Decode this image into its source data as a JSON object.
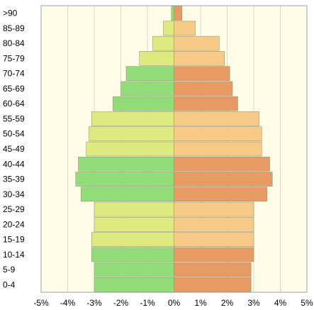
{
  "chart_data": {
    "type": "bar",
    "orientation": "horizontal",
    "layout": "population-pyramid",
    "title": "",
    "xlabel": "",
    "ylabel": "",
    "xlim": [
      -5,
      5
    ],
    "x_ticks": [
      -5,
      -4,
      -3,
      -2,
      -1,
      0,
      1,
      2,
      3,
      4,
      5
    ],
    "x_tick_labels": [
      "-5%",
      "-4%",
      "-3%",
      "-2%",
      "-1%",
      "0%",
      "1%",
      "2%",
      "3%",
      "4%",
      "5%"
    ],
    "grid": "vertical lines",
    "legend": "none",
    "categories": [
      ">90",
      "85-89",
      "80-84",
      "75-79",
      "70-74",
      "65-69",
      "60-64",
      "55-59",
      "50-54",
      "45-49",
      "40-44",
      "35-39",
      "30-34",
      "25-29",
      "20-24",
      "15-19",
      "10-14",
      "5-9",
      "0-4"
    ],
    "series": [
      {
        "side": "left",
        "values": [
          0.1,
          0.4,
          0.8,
          1.3,
          1.8,
          2.0,
          2.3,
          3.1,
          3.2,
          3.3,
          3.6,
          3.7,
          3.5,
          3.0,
          3.0,
          3.1,
          3.1,
          3.0,
          3.0
        ]
      },
      {
        "side": "right",
        "values": [
          0.3,
          0.8,
          1.7,
          1.9,
          2.1,
          2.2,
          2.4,
          3.2,
          3.3,
          3.3,
          3.6,
          3.7,
          3.5,
          3.0,
          3.0,
          3.0,
          3.0,
          2.9,
          2.9
        ]
      }
    ],
    "colors": {
      "background": "#fffde8",
      "grid": "#d8d8c8",
      "border": "#a0a0a0",
      "bar_stroke": "#9a9a7a",
      "left_light": "#ddea7f",
      "left_dark": "#92dc7a",
      "right_light": "#f7ca87",
      "right_dark": "#e79a63"
    },
    "band_pattern": "alternating 3-group bands starting with dark group for the youngest ages"
  }
}
